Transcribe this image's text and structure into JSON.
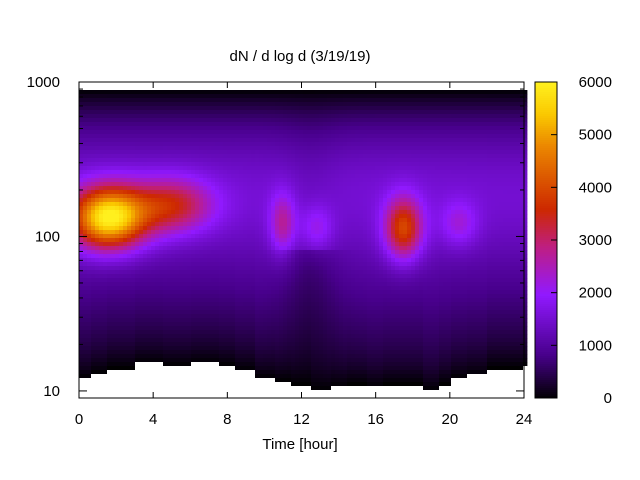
{
  "chart_data": {
    "type": "heatmap",
    "title": "dN / d log d (3/19/19)",
    "xlabel": "Time [hour]",
    "ylabel": "",
    "x_range": [
      0,
      24
    ],
    "y_range": [
      9,
      1000
    ],
    "y_scale": "log",
    "x_ticks": [
      0,
      4,
      8,
      12,
      16,
      20,
      24
    ],
    "y_ticks": [
      10,
      100,
      1000
    ],
    "colorbar": {
      "range": [
        0,
        6000
      ],
      "ticks": [
        0,
        1000,
        2000,
        3000,
        4000,
        5000,
        6000
      ],
      "palette": "black-purple-red-orange-yellow"
    },
    "grid": false,
    "data_upper_limit": 900,
    "lower_cutoff": [
      {
        "x": 0.0,
        "y": 12.0
      },
      {
        "x": 0.7,
        "y": 13.0
      },
      {
        "x": 1.5,
        "y": 14.0
      },
      {
        "x": 3.0,
        "y": 15.0
      },
      {
        "x": 4.5,
        "y": 14.5
      },
      {
        "x": 6.0,
        "y": 15.0
      },
      {
        "x": 7.5,
        "y": 14.5
      },
      {
        "x": 8.5,
        "y": 13.5
      },
      {
        "x": 9.5,
        "y": 12.0
      },
      {
        "x": 10.5,
        "y": 11.5
      },
      {
        "x": 11.5,
        "y": 11.0
      },
      {
        "x": 12.5,
        "y": 10.0
      },
      {
        "x": 13.5,
        "y": 10.5
      },
      {
        "x": 14.5,
        "y": 11.0
      },
      {
        "x": 15.5,
        "y": 10.5
      },
      {
        "x": 16.5,
        "y": 11.0
      },
      {
        "x": 17.5,
        "y": 11.0
      },
      {
        "x": 18.5,
        "y": 10.0
      },
      {
        "x": 19.5,
        "y": 11.0
      },
      {
        "x": 20.0,
        "y": 12.0
      },
      {
        "x": 21.0,
        "y": 12.5
      },
      {
        "x": 22.0,
        "y": 14.0
      },
      {
        "x": 24.0,
        "y": 14.5
      }
    ],
    "peaks": [
      {
        "x": 1.5,
        "y": 130,
        "value": 5400
      },
      {
        "x": 4.5,
        "y": 160,
        "value": 3300
      },
      {
        "x": 11.0,
        "y": 120,
        "value": 3000
      },
      {
        "x": 12.8,
        "y": 110,
        "value": 2500
      },
      {
        "x": 17.5,
        "y": 110,
        "value": 3700
      },
      {
        "x": 20.5,
        "y": 120,
        "value": 2400
      }
    ]
  }
}
